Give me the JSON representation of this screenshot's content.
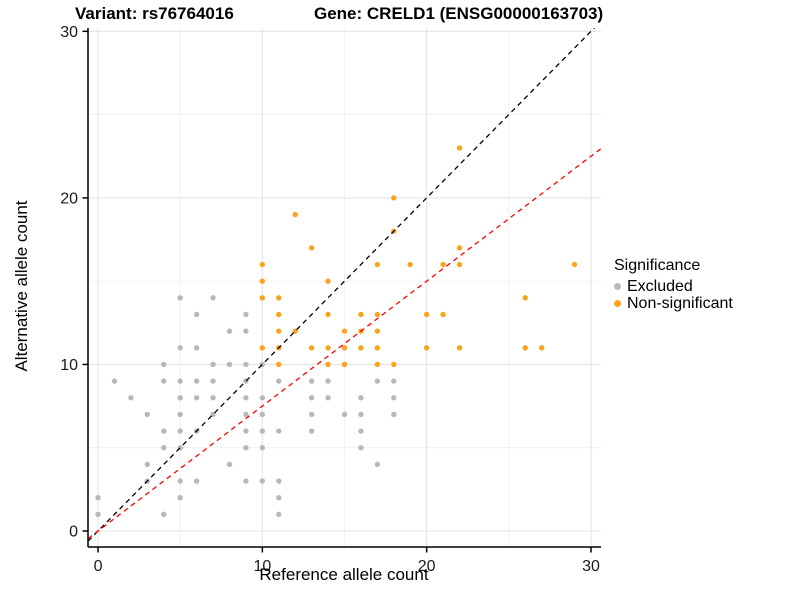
{
  "chart_data": {
    "type": "scatter",
    "title_left": "Variant: rs76764016",
    "title_right": "Gene: CRELD1 (ENSG00000163703)",
    "xlabel": "Reference allele count",
    "ylabel": "Alternative allele count",
    "xlim": [
      -0.61,
      30.61
    ],
    "ylim": [
      -0.96,
      30.2
    ],
    "xticks": [
      0,
      10,
      20,
      30
    ],
    "yticks": [
      0,
      10,
      20,
      30
    ],
    "minor_xticks": [
      5,
      15,
      25
    ],
    "minor_yticks": [
      5,
      15,
      25
    ],
    "grid": true,
    "background": "#ffffff",
    "grid_major_color": "#e4e4e4",
    "grid_minor_color": "#f0f0f0",
    "axis_color": "#000000",
    "legend": {
      "title": "Significance",
      "position": "right",
      "entries": [
        {
          "label": "Excluded",
          "color": "#b8b8b8"
        },
        {
          "label": "Non-significant",
          "color": "#faa41e"
        }
      ]
    },
    "series": [
      {
        "name": "Excluded",
        "color": "#b8b8b8",
        "points": [
          [
            0,
            1
          ],
          [
            0,
            2
          ],
          [
            1,
            9
          ],
          [
            2,
            8
          ],
          [
            3,
            3
          ],
          [
            3,
            4
          ],
          [
            3,
            7
          ],
          [
            4,
            1
          ],
          [
            4,
            5
          ],
          [
            4,
            6
          ],
          [
            4,
            9
          ],
          [
            4,
            10
          ],
          [
            5,
            2
          ],
          [
            5,
            3
          ],
          [
            5,
            5
          ],
          [
            5,
            6
          ],
          [
            5,
            7
          ],
          [
            5,
            8
          ],
          [
            5,
            9
          ],
          [
            5,
            11
          ],
          [
            5,
            14
          ],
          [
            6,
            3
          ],
          [
            6,
            6
          ],
          [
            6,
            8
          ],
          [
            6,
            9
          ],
          [
            6,
            11
          ],
          [
            6,
            13
          ],
          [
            7,
            7
          ],
          [
            7,
            8
          ],
          [
            7,
            9
          ],
          [
            7,
            10
          ],
          [
            7,
            14
          ],
          [
            8,
            4
          ],
          [
            8,
            10
          ],
          [
            8,
            12
          ],
          [
            9,
            3
          ],
          [
            9,
            5
          ],
          [
            9,
            6
          ],
          [
            9,
            7
          ],
          [
            9,
            8
          ],
          [
            9,
            9
          ],
          [
            9,
            10
          ],
          [
            9,
            12
          ],
          [
            9,
            13
          ],
          [
            10,
            3
          ],
          [
            10,
            5
          ],
          [
            10,
            6
          ],
          [
            10,
            7
          ],
          [
            10,
            8
          ],
          [
            10,
            10
          ],
          [
            11,
            1
          ],
          [
            11,
            2
          ],
          [
            11,
            3
          ],
          [
            11,
            6
          ],
          [
            11,
            9
          ],
          [
            13,
            6
          ],
          [
            13,
            7
          ],
          [
            13,
            8
          ],
          [
            13,
            9
          ],
          [
            14,
            8
          ],
          [
            14,
            9
          ],
          [
            15,
            7
          ],
          [
            16,
            5
          ],
          [
            16,
            6
          ],
          [
            16,
            7
          ],
          [
            16,
            8
          ],
          [
            17,
            4
          ],
          [
            17,
            9
          ],
          [
            18,
            7
          ],
          [
            18,
            8
          ],
          [
            18,
            9
          ]
        ]
      },
      {
        "name": "Non-significant",
        "color": "#faa41e",
        "points": [
          [
            10,
            11
          ],
          [
            10,
            14
          ],
          [
            10,
            15
          ],
          [
            10,
            16
          ],
          [
            11,
            10
          ],
          [
            11,
            11
          ],
          [
            11,
            12
          ],
          [
            11,
            13
          ],
          [
            11,
            14
          ],
          [
            12,
            12
          ],
          [
            12,
            19
          ],
          [
            13,
            11
          ],
          [
            13,
            17
          ],
          [
            14,
            10
          ],
          [
            14,
            11
          ],
          [
            14,
            13
          ],
          [
            14,
            15
          ],
          [
            15,
            10
          ],
          [
            15,
            11
          ],
          [
            15,
            12
          ],
          [
            16,
            11
          ],
          [
            16,
            12
          ],
          [
            16,
            13
          ],
          [
            17,
            10
          ],
          [
            17,
            11
          ],
          [
            17,
            12
          ],
          [
            17,
            13
          ],
          [
            17,
            16
          ],
          [
            18,
            10
          ],
          [
            18,
            18
          ],
          [
            18,
            20
          ],
          [
            19,
            16
          ],
          [
            20,
            11
          ],
          [
            20,
            13
          ],
          [
            21,
            13
          ],
          [
            21,
            16
          ],
          [
            22,
            11
          ],
          [
            22,
            16
          ],
          [
            22,
            17
          ],
          [
            22,
            23
          ],
          [
            26,
            11
          ],
          [
            26,
            14
          ],
          [
            27,
            11
          ],
          [
            29,
            16
          ]
        ]
      }
    ],
    "lines": [
      {
        "name": "identity-line",
        "style": "dashed",
        "color": "#000000",
        "slope": 1.0,
        "intercept": 0
      },
      {
        "name": "ratio-line",
        "style": "dashed",
        "color": "#ff0000",
        "slope": 0.75,
        "intercept": 0
      }
    ],
    "point_radius": 2.7
  }
}
